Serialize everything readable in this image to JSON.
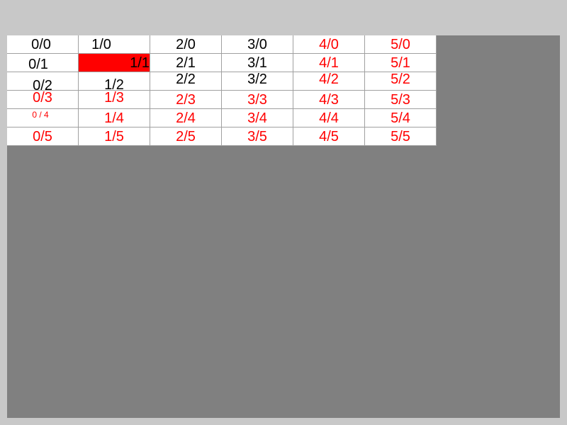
{
  "grid": {
    "cells": [
      [
        {
          "text": "0/0",
          "color": "black"
        },
        {
          "text": "1/0",
          "color": "black"
        },
        {
          "text": "2/0",
          "color": "black"
        },
        {
          "text": "3/0",
          "color": "black"
        },
        {
          "text": "4/0",
          "color": "red"
        },
        {
          "text": "5/0",
          "color": "red"
        }
      ],
      [
        {
          "text": "0/1",
          "color": "black"
        },
        {
          "text": "1/1",
          "color": "black",
          "bg": "red"
        },
        {
          "text": "2/1",
          "color": "black"
        },
        {
          "text": "3/1",
          "color": "black"
        },
        {
          "text": "4/1",
          "color": "red"
        },
        {
          "text": "5/1",
          "color": "red"
        }
      ],
      [
        {
          "text": "0/2",
          "color": "black"
        },
        {
          "text": "1/2",
          "color": "black"
        },
        {
          "text": "2/2",
          "color": "black"
        },
        {
          "text": "3/2",
          "color": "black"
        },
        {
          "text": "4/2",
          "color": "red"
        },
        {
          "text": "5/2",
          "color": "red"
        }
      ],
      [
        {
          "text": "0/3",
          "color": "red"
        },
        {
          "text": "1/3",
          "color": "red"
        },
        {
          "text": "2/3",
          "color": "red"
        },
        {
          "text": "3/3",
          "color": "red"
        },
        {
          "text": "4/3",
          "color": "red"
        },
        {
          "text": "5/3",
          "color": "red"
        }
      ],
      [
        {
          "text": "0 / 4",
          "color": "red"
        },
        {
          "text": "1/4",
          "color": "red"
        },
        {
          "text": "2/4",
          "color": "red"
        },
        {
          "text": "3/4",
          "color": "red"
        },
        {
          "text": "4/4",
          "color": "red"
        },
        {
          "text": "5/4",
          "color": "red"
        }
      ],
      [
        {
          "text": "0/5",
          "color": "red"
        },
        {
          "text": "1/5",
          "color": "red"
        },
        {
          "text": "2/5",
          "color": "red"
        },
        {
          "text": "3/5",
          "color": "red"
        },
        {
          "text": "4/5",
          "color": "red"
        },
        {
          "text": "5/5",
          "color": "red"
        }
      ]
    ]
  },
  "colors": {
    "window_bg": "#c8c8c8",
    "viewport_bg": "#808080",
    "cell_bg": "#ffffff",
    "highlight": "#ff0000",
    "red_text": "#ff0000",
    "black_text": "#000000"
  }
}
